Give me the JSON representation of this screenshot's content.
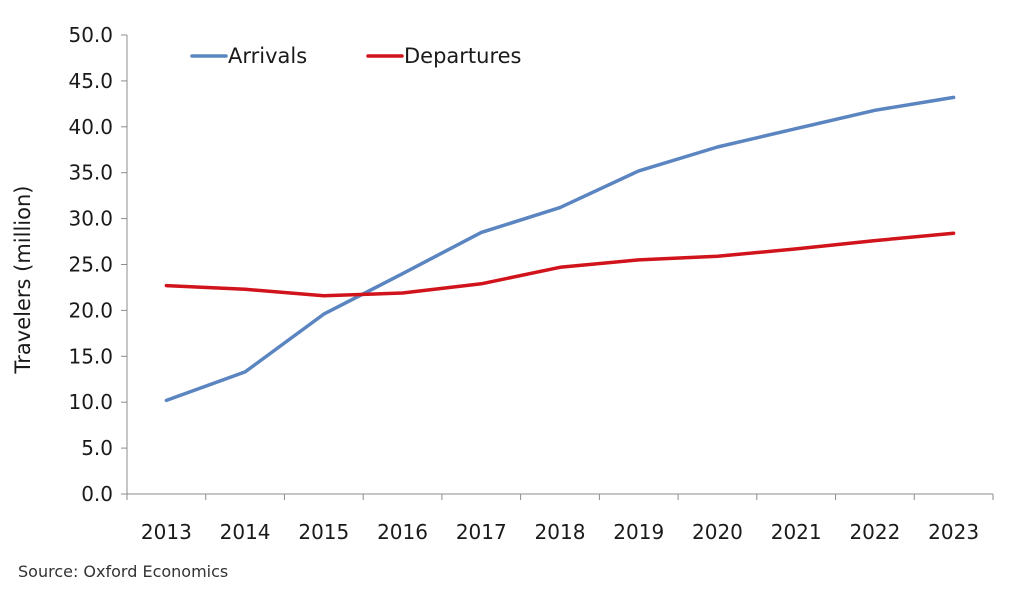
{
  "chart_data": {
    "type": "line",
    "ylabel": "Travelers (million)",
    "xlabel": "",
    "x": [
      "2013",
      "2014",
      "2015",
      "2016",
      "2017",
      "2018",
      "2019",
      "2020",
      "2021",
      "2022",
      "2023"
    ],
    "ylim": [
      0,
      50
    ],
    "yticks": [
      "0.0",
      "5.0",
      "10.0",
      "15.0",
      "20.0",
      "25.0",
      "30.0",
      "35.0",
      "40.0",
      "45.0",
      "50.0"
    ],
    "grid": false,
    "legend_position": "top-left",
    "series": [
      {
        "name": "Arrivals",
        "color": "#5b85c0",
        "values": [
          10.2,
          13.3,
          19.6,
          24.0,
          28.5,
          31.2,
          35.2,
          37.8,
          39.8,
          41.8,
          43.2
        ]
      },
      {
        "name": "Departures",
        "color": "#d1141b",
        "values": [
          22.7,
          22.3,
          21.6,
          21.9,
          22.9,
          24.7,
          25.5,
          25.9,
          26.7,
          27.6,
          28.4
        ]
      }
    ]
  },
  "source": "Source: Oxford Economics"
}
